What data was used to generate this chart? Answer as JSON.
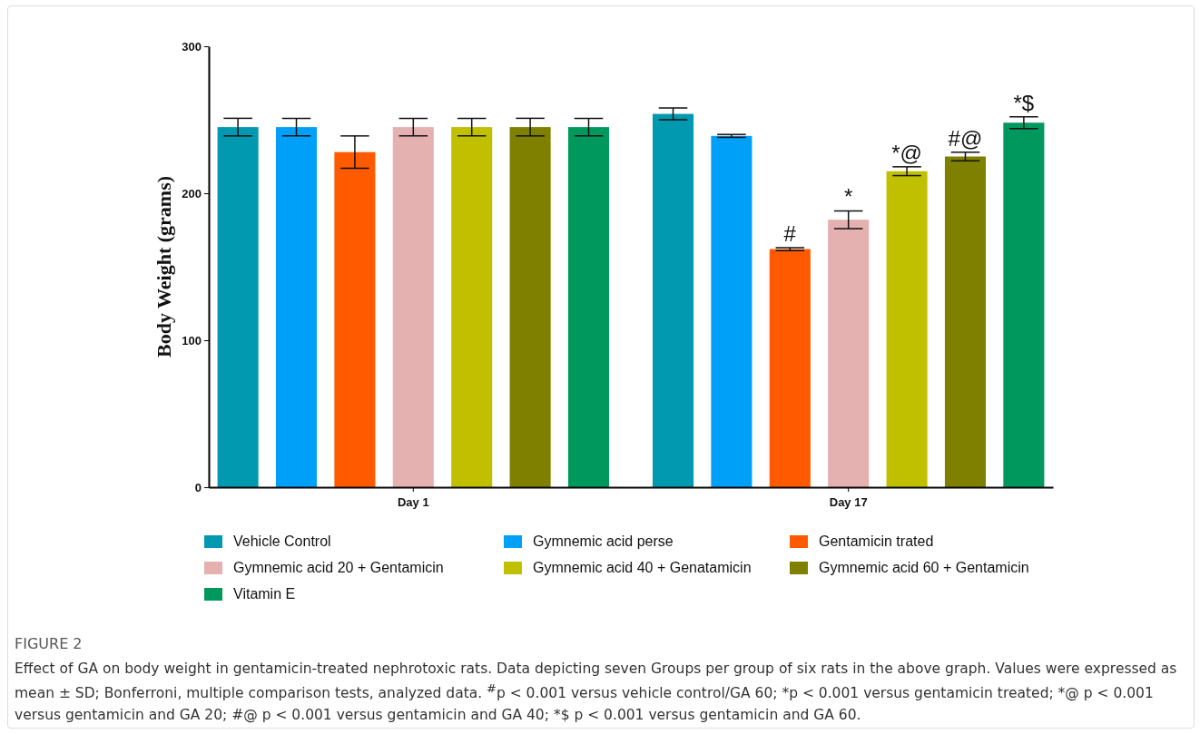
{
  "chart_data": {
    "type": "bar",
    "ylabel": "Body Weight (grams)",
    "categories": [
      "Day 1",
      "Day 17"
    ],
    "series": [
      {
        "name": "Vehicle Control",
        "color": "#0099b0",
        "values": [
          245,
          254
        ],
        "errors": [
          6,
          4
        ]
      },
      {
        "name": "Gymnemic acid perse",
        "color": "#00a0f8",
        "values": [
          245,
          239
        ],
        "errors": [
          6,
          1
        ]
      },
      {
        "name": "Gentamicin trated",
        "color": "#ff5a00",
        "values": [
          228,
          162
        ],
        "errors": [
          11,
          1
        ],
        "value_labels": [
          null,
          "#"
        ]
      },
      {
        "name": "Gymnemic acid 20 + Gentamicin",
        "color": "#e4b0b0",
        "values": [
          245,
          182
        ],
        "errors": [
          6,
          6
        ],
        "value_labels": [
          null,
          "*"
        ]
      },
      {
        "name": "Gymnemic acid 40 + Genatamicin",
        "color": "#c0c000",
        "values": [
          245,
          215
        ],
        "errors": [
          6,
          3
        ],
        "value_labels": [
          null,
          "*@"
        ]
      },
      {
        "name": "Gymnemic acid 60 + Gentamicin",
        "color": "#808000",
        "values": [
          245,
          225
        ],
        "errors": [
          6,
          3
        ],
        "value_labels": [
          null,
          "#@"
        ]
      },
      {
        "name": "Vitamin E",
        "color": "#00985c",
        "values": [
          245,
          248
        ],
        "errors": [
          6,
          4
        ],
        "value_labels": [
          null,
          "*$"
        ]
      }
    ],
    "ylim": [
      0,
      300
    ],
    "yticks": [
      0,
      100,
      200,
      300
    ],
    "grid": false,
    "legend": "bottom",
    "annotations": [
      "FIGURE 2",
      "Effect of GA on body weight in gentamicin-treated nephrotoxic rats. Data depicting seven Groups per group of six rats in the above graph. Values were expressed as mean ± SD; Bonferroni, multiple comparison tests, analyzed data. $^{#}$p < 0.001 versus vehicle control/GA 60; *p < 0.001 versus gentamicin treated; *@ p < 0.001 versus gentamicin and GA 20; #@ p < 0.001 versus gentamicin and GA 40; *$ p < 0.001 versus gentamicin and GA 60."
    ]
  }
}
